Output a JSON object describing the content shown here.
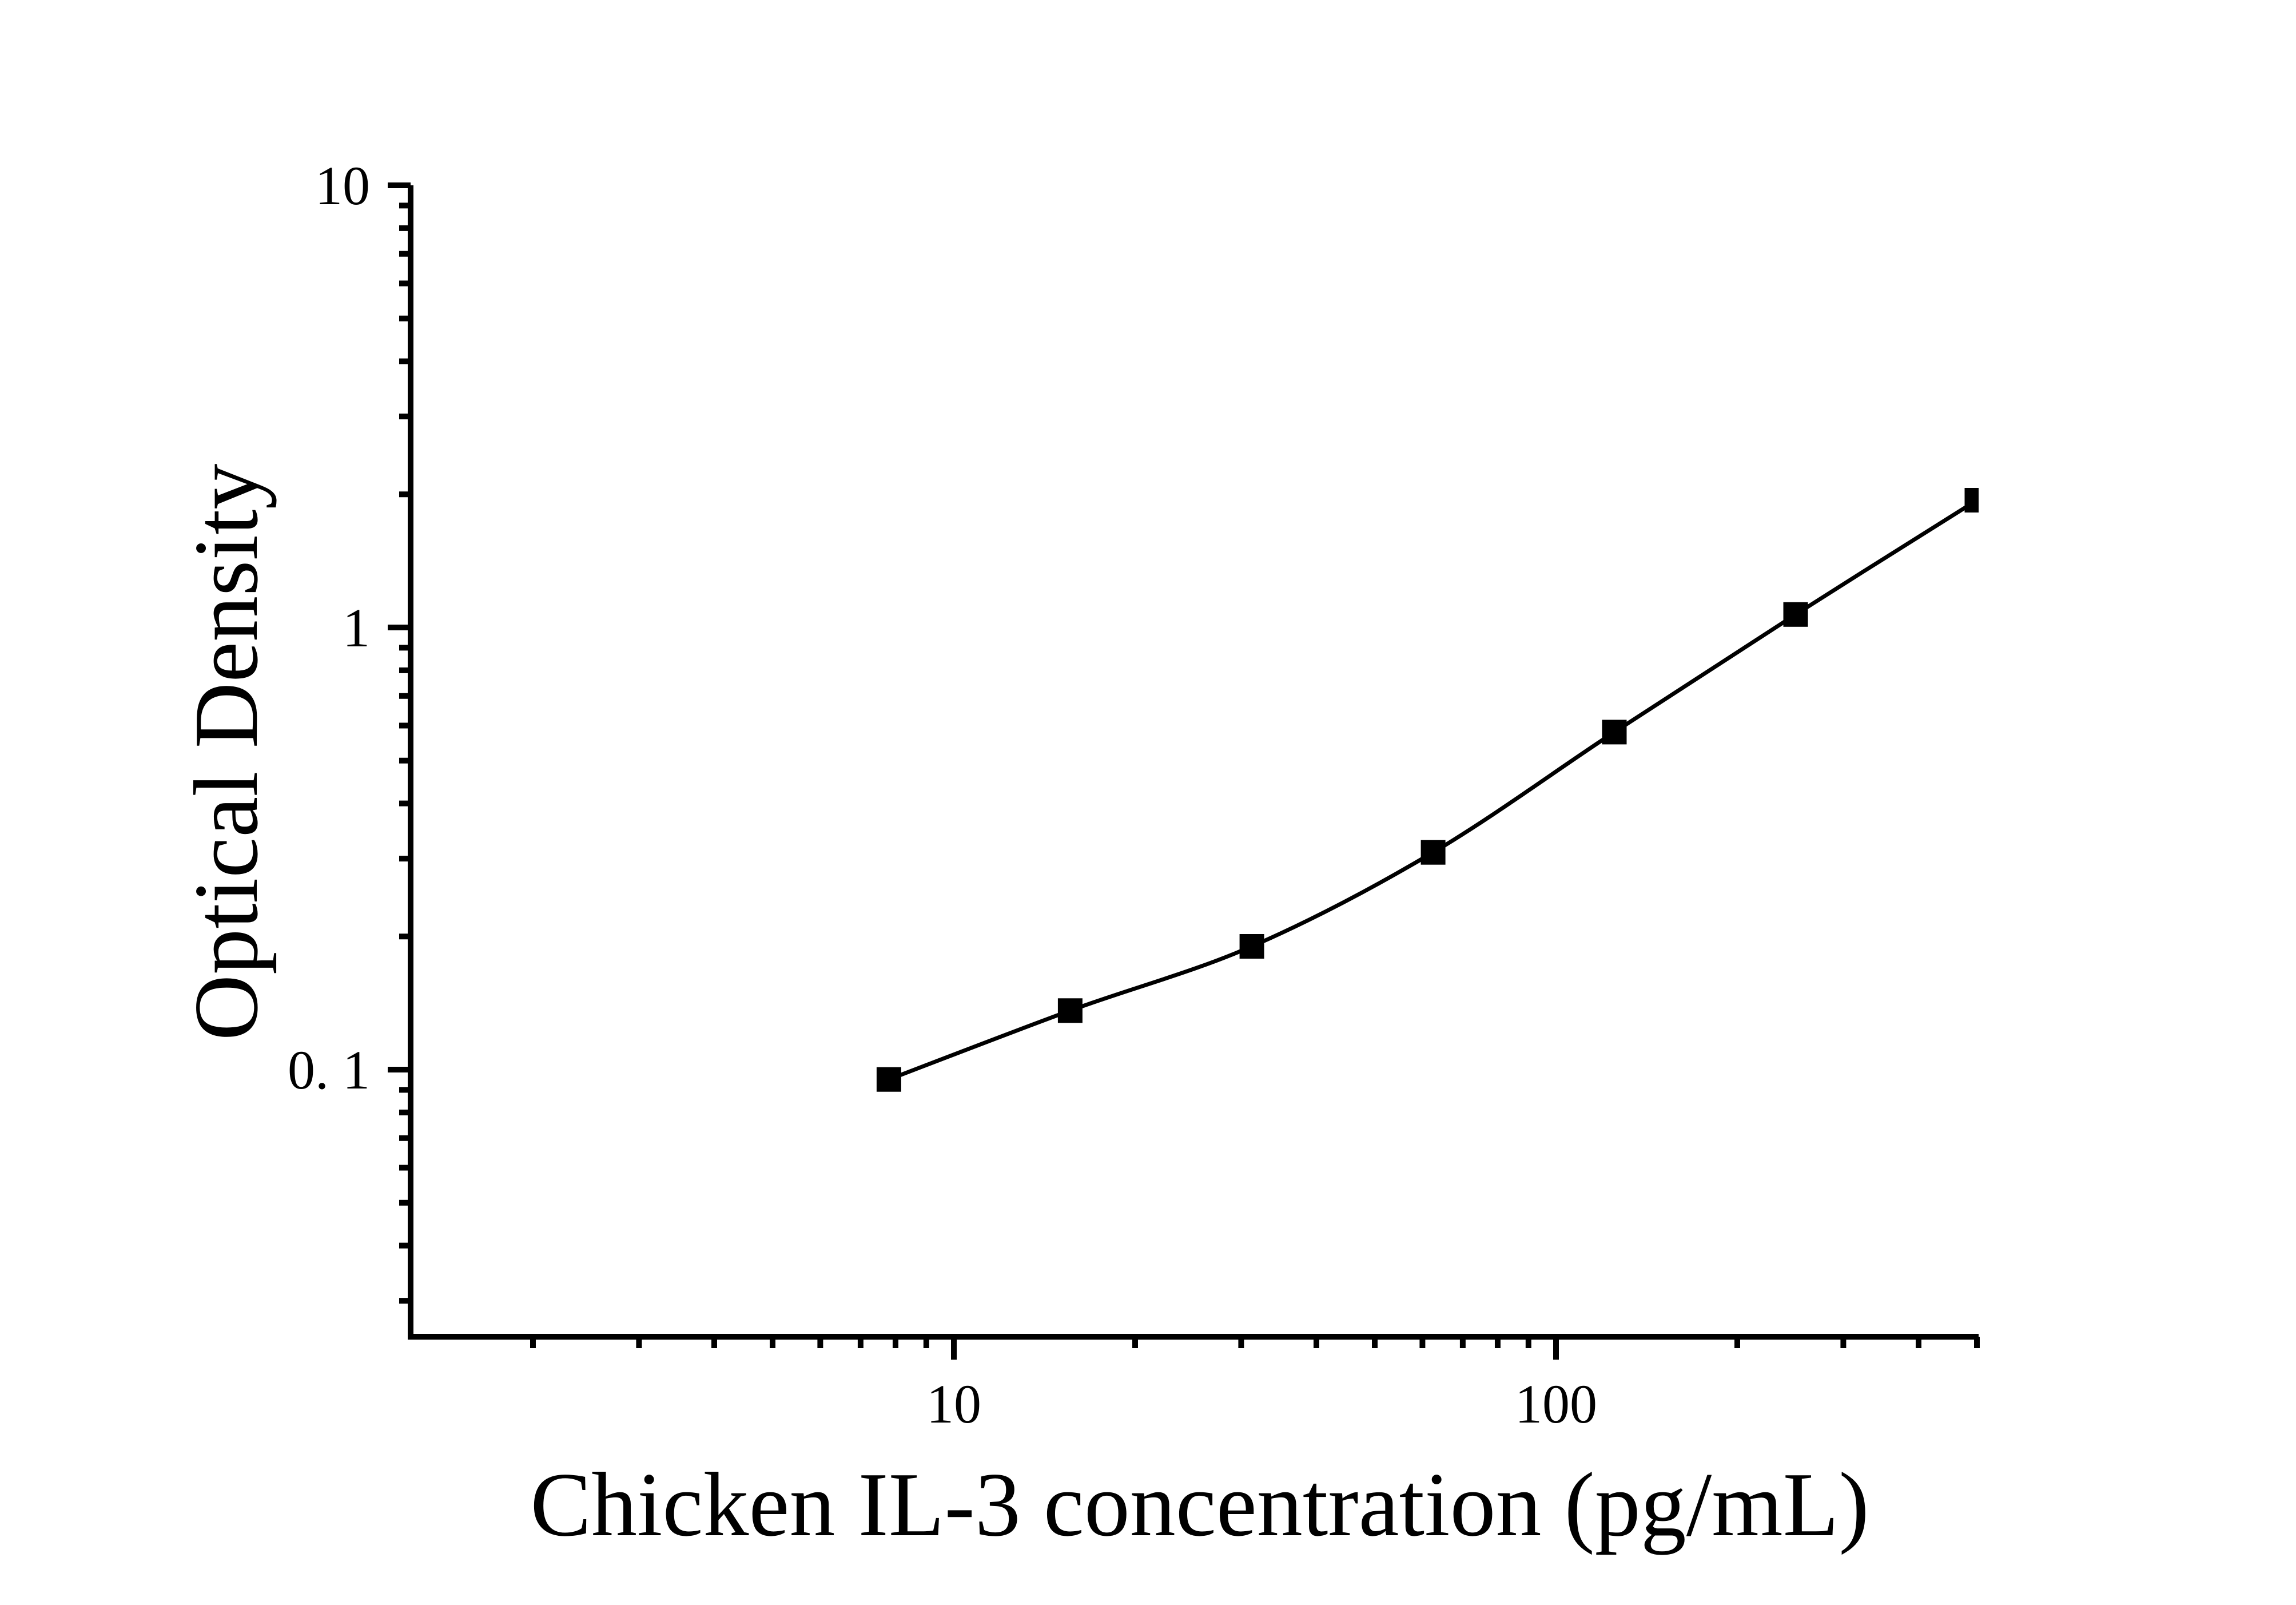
{
  "figure": {
    "background_color": "#ffffff",
    "ink_color": "#000000",
    "x_axis_title": "Chicken IL-3 concentration (pg/mL)",
    "y_axis_title": "Optical Density"
  },
  "chart_data": {
    "type": "scatter",
    "subtype": "line+markers",
    "marker_shape": "filled-square",
    "marker_color": "#000000",
    "line_color": "#000000",
    "title": "",
    "xlabel": "Chicken IL-3 concentration (pg/mL)",
    "ylabel": "Optical Density",
    "x_scale": "log",
    "y_scale": "log",
    "xlim": [
      1.25,
      500
    ],
    "ylim": [
      0.025,
      10
    ],
    "x": [
      7.8,
      15.6,
      31.25,
      62.5,
      125,
      250,
      500
    ],
    "y": [
      0.095,
      0.136,
      0.19,
      0.31,
      0.58,
      1.07,
      1.94
    ],
    "x_major_ticks": [
      10,
      100
    ],
    "x_major_tick_labels": [
      "10",
      "100"
    ],
    "x_minor_ticks": [
      2,
      3,
      4,
      5,
      6,
      7,
      8,
      9,
      20,
      30,
      40,
      50,
      60,
      70,
      80,
      90,
      200,
      300,
      400,
      500
    ],
    "y_major_ticks": [
      10,
      1,
      0.1
    ],
    "y_major_tick_labels": [
      "10",
      "1",
      "0. 1"
    ],
    "y_minor_ticks": [
      9,
      8,
      7,
      6,
      5,
      4,
      3,
      2,
      0.9,
      0.8,
      0.7,
      0.6,
      0.5,
      0.4,
      0.3,
      0.2,
      0.09,
      0.08,
      0.07,
      0.06,
      0.05,
      0.04,
      0.03
    ],
    "grid": false,
    "legend": false
  }
}
